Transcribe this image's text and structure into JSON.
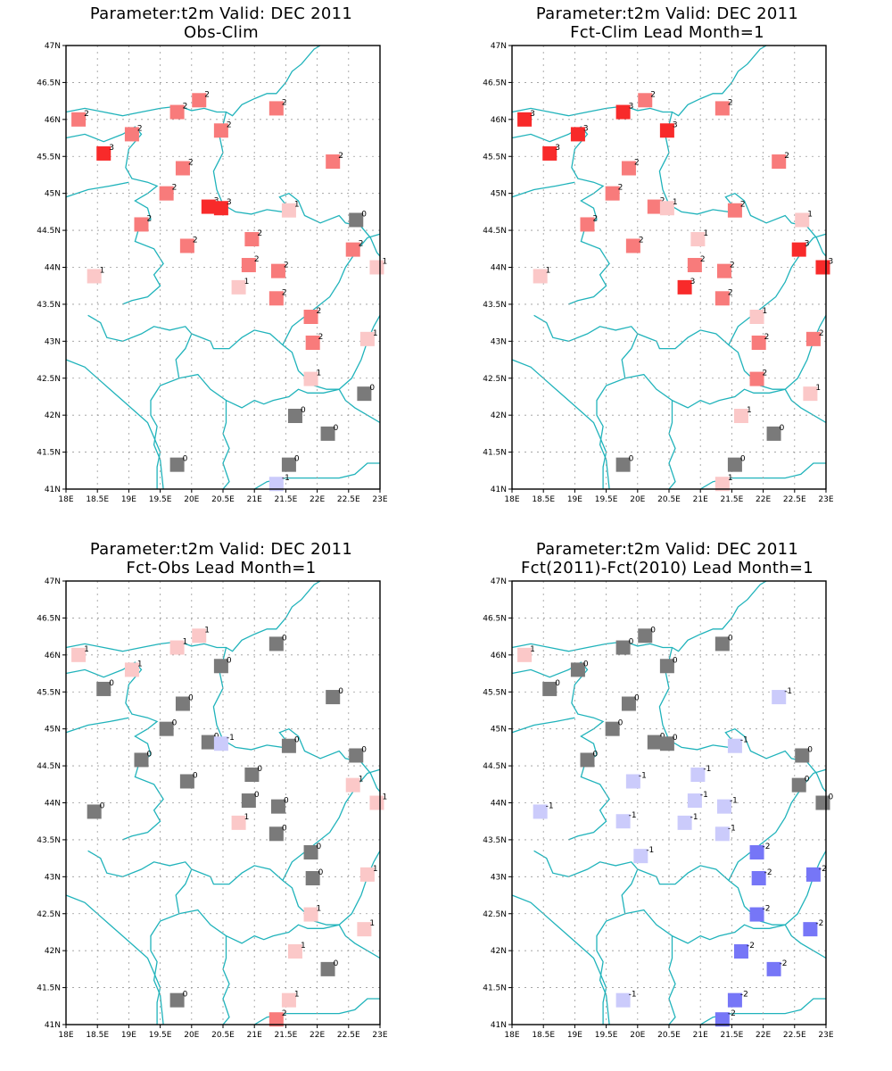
{
  "colors": {
    "m2": "#7676f7",
    "m1": "#cbcbfb",
    "z0": "#7a7a7a",
    "p1": "#fbc8c8",
    "p2": "#f87b7b",
    "p3": "#f82a2a",
    "coast": "#20b3bb",
    "grid": "#9a9a9a"
  },
  "chart_data": [
    {
      "type": "scatter",
      "title": "Parameter:t2m Valid: DEC 2011",
      "subtitle": "Obs-Clim",
      "xlim": [
        18,
        23
      ],
      "ylim": [
        41,
        47
      ],
      "xticks": [
        "18E",
        "18.5E",
        "19E",
        "19.5E",
        "20E",
        "20.5E",
        "21E",
        "21.5E",
        "22E",
        "22.5E",
        "23E"
      ],
      "yticks": [
        "41N",
        "41.5N",
        "42N",
        "42.5N",
        "43N",
        "43.5N",
        "44N",
        "44.5N",
        "45N",
        "45.5N",
        "46N",
        "46.5N",
        "47N"
      ],
      "grid": true,
      "points": [
        {
          "x": 18.2,
          "y": 46.0,
          "v": 2
        },
        {
          "x": 18.45,
          "y": 43.88,
          "v": 1
        },
        {
          "x": 18.6,
          "y": 45.54,
          "v": 3
        },
        {
          "x": 19.05,
          "y": 45.8,
          "v": 2
        },
        {
          "x": 19.2,
          "y": 44.58,
          "v": 2
        },
        {
          "x": 19.6,
          "y": 45.0,
          "v": 2
        },
        {
          "x": 19.77,
          "y": 46.1,
          "v": 2
        },
        {
          "x": 19.86,
          "y": 45.34,
          "v": 2
        },
        {
          "x": 19.93,
          "y": 44.29,
          "v": 2
        },
        {
          "x": 19.77,
          "y": 41.33,
          "v": 0
        },
        {
          "x": 20.12,
          "y": 46.26,
          "v": 2
        },
        {
          "x": 20.27,
          "y": 44.82,
          "v": 3
        },
        {
          "x": 20.47,
          "y": 44.8,
          "v": 3
        },
        {
          "x": 20.47,
          "y": 45.85,
          "v": 2
        },
        {
          "x": 20.75,
          "y": 43.73,
          "v": 1
        },
        {
          "x": 20.91,
          "y": 44.03,
          "v": 2
        },
        {
          "x": 20.96,
          "y": 44.38,
          "v": 2
        },
        {
          "x": 21.35,
          "y": 46.15,
          "v": 2
        },
        {
          "x": 21.38,
          "y": 43.95,
          "v": 2
        },
        {
          "x": 21.35,
          "y": 43.58,
          "v": 2
        },
        {
          "x": 21.55,
          "y": 44.77,
          "v": 1
        },
        {
          "x": 21.35,
          "y": 41.07,
          "v": -1
        },
        {
          "x": 21.55,
          "y": 41.33,
          "v": 0
        },
        {
          "x": 21.65,
          "y": 41.99,
          "v": 0
        },
        {
          "x": 21.9,
          "y": 43.33,
          "v": 2
        },
        {
          "x": 21.93,
          "y": 42.98,
          "v": 2
        },
        {
          "x": 21.9,
          "y": 42.49,
          "v": 1
        },
        {
          "x": 22.17,
          "y": 41.75,
          "v": 0
        },
        {
          "x": 22.25,
          "y": 45.43,
          "v": 2
        },
        {
          "x": 22.62,
          "y": 44.64,
          "v": 0
        },
        {
          "x": 22.57,
          "y": 44.24,
          "v": 2
        },
        {
          "x": 22.8,
          "y": 43.03,
          "v": 1
        },
        {
          "x": 22.75,
          "y": 42.29,
          "v": 0
        },
        {
          "x": 22.95,
          "y": 44.0,
          "v": 1
        }
      ]
    },
    {
      "type": "scatter",
      "title": "Parameter:t2m Valid: DEC 2011",
      "subtitle": "Fct-Clim Lead Month=1",
      "xlim": [
        18,
        23
      ],
      "ylim": [
        41,
        47
      ],
      "xticks": [
        "18E",
        "18.5E",
        "19E",
        "19.5E",
        "20E",
        "20.5E",
        "21E",
        "21.5E",
        "22E",
        "22.5E",
        "23E"
      ],
      "yticks": [
        "41N",
        "41.5N",
        "42N",
        "42.5N",
        "43N",
        "43.5N",
        "44N",
        "44.5N",
        "45N",
        "45.5N",
        "46N",
        "46.5N",
        "47N"
      ],
      "grid": true,
      "points": [
        {
          "x": 18.2,
          "y": 46.0,
          "v": 3
        },
        {
          "x": 18.45,
          "y": 43.88,
          "v": 1
        },
        {
          "x": 18.6,
          "y": 45.54,
          "v": 3
        },
        {
          "x": 19.05,
          "y": 45.8,
          "v": 3
        },
        {
          "x": 19.2,
          "y": 44.58,
          "v": 2
        },
        {
          "x": 19.6,
          "y": 45.0,
          "v": 2
        },
        {
          "x": 19.77,
          "y": 46.1,
          "v": 3
        },
        {
          "x": 19.86,
          "y": 45.34,
          "v": 2
        },
        {
          "x": 19.93,
          "y": 44.29,
          "v": 2
        },
        {
          "x": 19.77,
          "y": 41.33,
          "v": 0
        },
        {
          "x": 20.12,
          "y": 46.26,
          "v": 2
        },
        {
          "x": 20.27,
          "y": 44.82,
          "v": 2
        },
        {
          "x": 20.47,
          "y": 44.8,
          "v": 1
        },
        {
          "x": 20.47,
          "y": 45.85,
          "v": 3
        },
        {
          "x": 20.75,
          "y": 43.73,
          "v": 3
        },
        {
          "x": 20.91,
          "y": 44.03,
          "v": 2
        },
        {
          "x": 20.96,
          "y": 44.38,
          "v": 1
        },
        {
          "x": 21.35,
          "y": 46.15,
          "v": 2
        },
        {
          "x": 21.38,
          "y": 43.95,
          "v": 2
        },
        {
          "x": 21.35,
          "y": 43.58,
          "v": 2
        },
        {
          "x": 21.55,
          "y": 44.77,
          "v": 2
        },
        {
          "x": 21.35,
          "y": 41.07,
          "v": 1
        },
        {
          "x": 21.55,
          "y": 41.33,
          "v": 0
        },
        {
          "x": 21.65,
          "y": 41.99,
          "v": 1
        },
        {
          "x": 21.9,
          "y": 43.33,
          "v": 1
        },
        {
          "x": 21.93,
          "y": 42.98,
          "v": 2
        },
        {
          "x": 21.9,
          "y": 42.49,
          "v": 2
        },
        {
          "x": 22.17,
          "y": 41.75,
          "v": 0
        },
        {
          "x": 22.25,
          "y": 45.43,
          "v": 2
        },
        {
          "x": 22.62,
          "y": 44.64,
          "v": 1
        },
        {
          "x": 22.57,
          "y": 44.24,
          "v": 3
        },
        {
          "x": 22.8,
          "y": 43.03,
          "v": 2
        },
        {
          "x": 22.75,
          "y": 42.29,
          "v": 1
        },
        {
          "x": 22.95,
          "y": 44.0,
          "v": 3
        }
      ]
    },
    {
      "type": "scatter",
      "title": "Parameter:t2m Valid: DEC 2011",
      "subtitle": "Fct-Obs Lead Month=1",
      "xlim": [
        18,
        23
      ],
      "ylim": [
        41,
        47
      ],
      "xticks": [
        "18E",
        "18.5E",
        "19E",
        "19.5E",
        "20E",
        "20.5E",
        "21E",
        "21.5E",
        "22E",
        "22.5E",
        "23E"
      ],
      "yticks": [
        "41N",
        "41.5N",
        "42N",
        "42.5N",
        "43N",
        "43.5N",
        "44N",
        "44.5N",
        "45N",
        "45.5N",
        "46N",
        "46.5N",
        "47N"
      ],
      "grid": true,
      "points": [
        {
          "x": 18.2,
          "y": 46.0,
          "v": 1
        },
        {
          "x": 18.45,
          "y": 43.88,
          "v": 0
        },
        {
          "x": 18.6,
          "y": 45.54,
          "v": 0
        },
        {
          "x": 19.05,
          "y": 45.8,
          "v": 1
        },
        {
          "x": 19.2,
          "y": 44.58,
          "v": 0
        },
        {
          "x": 19.6,
          "y": 45.0,
          "v": 0
        },
        {
          "x": 19.77,
          "y": 46.1,
          "v": 1
        },
        {
          "x": 19.86,
          "y": 45.34,
          "v": 0
        },
        {
          "x": 19.93,
          "y": 44.29,
          "v": 0
        },
        {
          "x": 19.77,
          "y": 41.33,
          "v": 0
        },
        {
          "x": 20.12,
          "y": 46.26,
          "v": 1
        },
        {
          "x": 20.27,
          "y": 44.82,
          "v": 0
        },
        {
          "x": 20.47,
          "y": 44.8,
          "v": -1
        },
        {
          "x": 20.47,
          "y": 45.85,
          "v": 0
        },
        {
          "x": 20.75,
          "y": 43.73,
          "v": 1
        },
        {
          "x": 20.91,
          "y": 44.03,
          "v": 0
        },
        {
          "x": 20.96,
          "y": 44.38,
          "v": 0
        },
        {
          "x": 21.35,
          "y": 46.15,
          "v": 0
        },
        {
          "x": 21.38,
          "y": 43.95,
          "v": 0
        },
        {
          "x": 21.35,
          "y": 43.58,
          "v": 0
        },
        {
          "x": 21.55,
          "y": 44.77,
          "v": 0
        },
        {
          "x": 21.35,
          "y": 41.07,
          "v": 2
        },
        {
          "x": 21.55,
          "y": 41.33,
          "v": 1
        },
        {
          "x": 21.65,
          "y": 41.99,
          "v": 1
        },
        {
          "x": 21.9,
          "y": 43.33,
          "v": 0
        },
        {
          "x": 21.93,
          "y": 42.98,
          "v": 0
        },
        {
          "x": 21.9,
          "y": 42.49,
          "v": 1
        },
        {
          "x": 22.17,
          "y": 41.75,
          "v": 0
        },
        {
          "x": 22.25,
          "y": 45.43,
          "v": 0
        },
        {
          "x": 22.62,
          "y": 44.64,
          "v": 0
        },
        {
          "x": 22.57,
          "y": 44.24,
          "v": 1
        },
        {
          "x": 22.8,
          "y": 43.03,
          "v": 1
        },
        {
          "x": 22.75,
          "y": 42.29,
          "v": 1
        },
        {
          "x": 22.95,
          "y": 44.0,
          "v": 1
        }
      ]
    },
    {
      "type": "scatter",
      "title": "Parameter:t2m Valid: DEC 2011",
      "subtitle": "Fct(2011)-Fct(2010) Lead Month=1",
      "xlim": [
        18,
        23
      ],
      "ylim": [
        41,
        47
      ],
      "xticks": [
        "18E",
        "18.5E",
        "19E",
        "19.5E",
        "20E",
        "20.5E",
        "21E",
        "21.5E",
        "22E",
        "22.5E",
        "23E"
      ],
      "yticks": [
        "41N",
        "41.5N",
        "42N",
        "42.5N",
        "43N",
        "43.5N",
        "44N",
        "44.5N",
        "45N",
        "45.5N",
        "46N",
        "46.5N",
        "47N"
      ],
      "grid": true,
      "points": [
        {
          "x": 18.2,
          "y": 46.0,
          "v": 1
        },
        {
          "x": 18.45,
          "y": 43.88,
          "v": -1
        },
        {
          "x": 18.6,
          "y": 45.54,
          "v": 0
        },
        {
          "x": 19.05,
          "y": 45.8,
          "v": 0
        },
        {
          "x": 19.2,
          "y": 44.58,
          "v": 0
        },
        {
          "x": 19.6,
          "y": 45.0,
          "v": 0
        },
        {
          "x": 19.77,
          "y": 46.1,
          "v": 0
        },
        {
          "x": 19.86,
          "y": 45.34,
          "v": 0
        },
        {
          "x": 19.93,
          "y": 44.29,
          "v": -1
        },
        {
          "x": 19.77,
          "y": 41.33,
          "v": -1
        },
        {
          "x": 20.12,
          "y": 46.26,
          "v": 0
        },
        {
          "x": 20.27,
          "y": 44.82,
          "v": 0
        },
        {
          "x": 20.47,
          "y": 44.8,
          "v": 0
        },
        {
          "x": 20.47,
          "y": 45.85,
          "v": 0
        },
        {
          "x": 20.75,
          "y": 43.73,
          "v": -1
        },
        {
          "x": 20.91,
          "y": 44.03,
          "v": -1
        },
        {
          "x": 20.96,
          "y": 44.38,
          "v": -1
        },
        {
          "x": 21.35,
          "y": 46.15,
          "v": 0
        },
        {
          "x": 21.38,
          "y": 43.95,
          "v": -1
        },
        {
          "x": 21.35,
          "y": 43.58,
          "v": -1
        },
        {
          "x": 21.55,
          "y": 44.77,
          "v": -1
        },
        {
          "x": 21.35,
          "y": 41.07,
          "v": -2
        },
        {
          "x": 21.55,
          "y": 41.33,
          "v": -2
        },
        {
          "x": 21.65,
          "y": 41.99,
          "v": -2
        },
        {
          "x": 21.9,
          "y": 43.33,
          "v": -2
        },
        {
          "x": 21.93,
          "y": 42.98,
          "v": -2
        },
        {
          "x": 21.9,
          "y": 42.49,
          "v": -2
        },
        {
          "x": 22.17,
          "y": 41.75,
          "v": -2
        },
        {
          "x": 22.25,
          "y": 45.43,
          "v": -1
        },
        {
          "x": 22.62,
          "y": 44.64,
          "v": 0
        },
        {
          "x": 22.57,
          "y": 44.24,
          "v": 0
        },
        {
          "x": 22.8,
          "y": 43.03,
          "v": -2
        },
        {
          "x": 22.75,
          "y": 42.29,
          "v": -2
        },
        {
          "x": 22.95,
          "y": 44.0,
          "v": 0
        },
        {
          "x": 19.77,
          "y": 43.75,
          "v": -1
        },
        {
          "x": 20.05,
          "y": 43.28,
          "v": -1
        }
      ]
    }
  ]
}
